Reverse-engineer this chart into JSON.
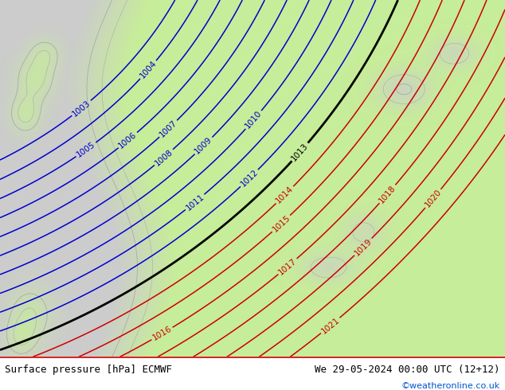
{
  "title_left": "Surface pressure [hPa] ECMWF",
  "title_right": "We 29-05-2024 00:00 UTC (12+12)",
  "credit": "©weatheronline.co.uk",
  "sea_color": [
    0.8,
    0.8,
    0.8
  ],
  "land_color": [
    0.78,
    0.93,
    0.6
  ],
  "blue_contour_color": "#0000cc",
  "red_contour_color": "#cc0000",
  "black_contour_color": "#000000",
  "gray_contour_color": "#999999",
  "bottom_bar_color": "#ffffff",
  "credit_color": "#0055cc",
  "blue_levels": [
    1003,
    1004,
    1005,
    1006,
    1007,
    1008,
    1009,
    1010,
    1011,
    1012
  ],
  "black_levels": [
    1013
  ],
  "red_levels": [
    1014,
    1015,
    1016,
    1017,
    1018,
    1019,
    1020,
    1021
  ],
  "figsize": [
    6.34,
    4.9
  ],
  "dpi": 100
}
